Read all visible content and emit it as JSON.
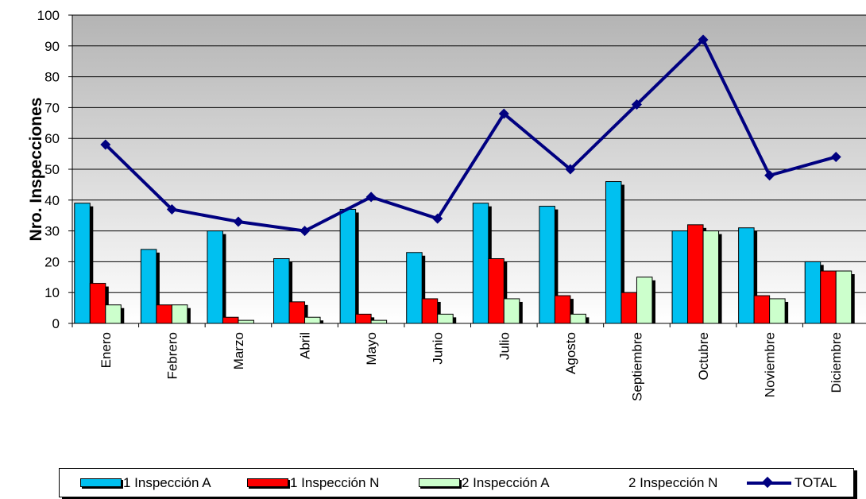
{
  "chart_data": {
    "type": "bar",
    "ylabel": "Nro. Inspecciones",
    "ylim": [
      0,
      100
    ],
    "yticks": [
      "0",
      "10",
      "20",
      "30",
      "40",
      "50",
      "60",
      "70",
      "80",
      "90",
      "100"
    ],
    "grid": true,
    "legend_position": "bottom",
    "categories": [
      "Enero",
      "Febrero",
      "Marzo",
      "Abril",
      "Mayo",
      "Junio",
      "Julio",
      "Agosto",
      "Septiembre",
      "Octubre",
      "Noviembre",
      "Diciembre"
    ],
    "series": [
      {
        "name": "1 Inspección A",
        "type": "bar",
        "color": "#00c0f0",
        "values": [
          39,
          24,
          30,
          21,
          37,
          23,
          39,
          38,
          46,
          30,
          31,
          20
        ]
      },
      {
        "name": "1 Inspección N",
        "type": "bar",
        "color": "#ff0000",
        "values": [
          13,
          6,
          2,
          7,
          3,
          8,
          21,
          9,
          10,
          32,
          9,
          17
        ]
      },
      {
        "name": "2 Inspección A",
        "type": "bar",
        "color": "#ccffcc",
        "values": [
          6,
          6,
          1,
          2,
          1,
          3,
          8,
          3,
          15,
          30,
          8,
          17
        ]
      },
      {
        "name": "2 Inspección N",
        "type": "bar",
        "color": "#ffffff",
        "values": [
          0,
          0,
          0,
          0,
          0,
          0,
          0,
          0,
          0,
          0,
          0,
          0
        ]
      },
      {
        "name": "TOTAL",
        "type": "line",
        "color": "#000080",
        "values": [
          58,
          37,
          33,
          30,
          41,
          34,
          68,
          50,
          71,
          92,
          48,
          54
        ]
      }
    ]
  }
}
